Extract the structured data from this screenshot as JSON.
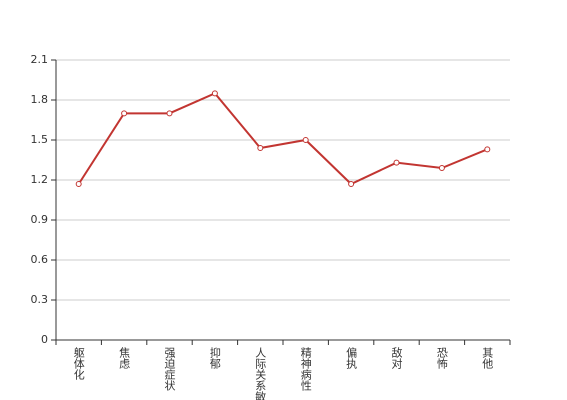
{
  "chart_data": {
    "type": "line",
    "categories": [
      "躯体化",
      "焦虑",
      "强迫症状",
      "抑郁",
      "人际关系敏感",
      "精神病性",
      "偏执",
      "敌对",
      "恐怖",
      "其他"
    ],
    "series": [
      {
        "color": "#c23531",
        "values": [
          1.17,
          1.7,
          1.7,
          1.85,
          1.44,
          1.5,
          1.17,
          1.33,
          1.29,
          1.43
        ]
      }
    ],
    "ylim": [
      0,
      2.1
    ],
    "yticks": [
      0,
      0.3,
      0.6,
      0.9,
      1.2,
      1.5,
      1.8,
      2.1
    ],
    "grid": true
  }
}
